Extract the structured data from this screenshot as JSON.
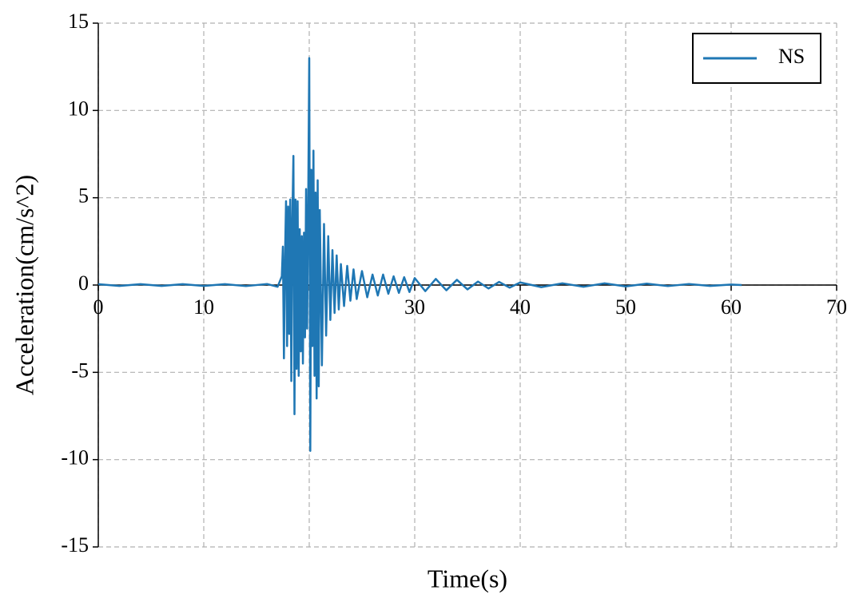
{
  "chart_data": {
    "type": "line",
    "xlabel": "Time(s)",
    "ylabel": "Acceleration(cm/s^2)",
    "x": [
      0,
      2,
      4,
      6,
      8,
      10,
      12,
      14,
      16,
      17,
      17.4,
      17.5,
      17.6,
      17.7,
      17.8,
      17.9,
      18.0,
      18.1,
      18.2,
      18.3,
      18.4,
      18.5,
      18.6,
      18.7,
      18.8,
      18.9,
      19.0,
      19.1,
      19.2,
      19.3,
      19.4,
      19.5,
      19.6,
      19.7,
      19.8,
      19.9,
      20.0,
      20.1,
      20.2,
      20.3,
      20.4,
      20.5,
      20.6,
      20.7,
      20.8,
      20.9,
      21.0,
      21.2,
      21.4,
      21.6,
      21.8,
      22.0,
      22.2,
      22.4,
      22.6,
      22.8,
      23.0,
      23.3,
      23.6,
      23.9,
      24.2,
      24.5,
      25,
      25.5,
      26,
      26.5,
      27,
      27.5,
      28,
      28.5,
      29,
      29.5,
      30,
      31,
      32,
      33,
      34,
      35,
      36,
      37,
      38,
      39,
      40,
      42,
      44,
      46,
      48,
      50,
      52,
      54,
      56,
      58,
      60,
      61
    ],
    "series": [
      {
        "name": "NS",
        "color": "#1f77b4",
        "values": [
          0.05,
          -0.05,
          0.05,
          -0.05,
          0.05,
          -0.05,
          0.05,
          -0.06,
          0.06,
          -0.1,
          0.5,
          2.2,
          -4.2,
          1.5,
          4.8,
          -3.5,
          4.5,
          -2.8,
          4.9,
          -5.5,
          3.8,
          7.4,
          -7.4,
          4.9,
          -4.8,
          4.8,
          -5.2,
          3.2,
          -3.8,
          2.8,
          -4.5,
          3.0,
          -3.0,
          5.5,
          -2.5,
          4.5,
          13.0,
          -9.5,
          6.6,
          -3.5,
          7.7,
          -5.2,
          5.3,
          -6.5,
          6.0,
          -5.8,
          4.3,
          -4.6,
          3.5,
          -2.9,
          2.8,
          -2.0,
          2.0,
          -1.6,
          1.7,
          -1.4,
          1.2,
          -1.2,
          1.1,
          -0.9,
          0.9,
          -0.8,
          0.8,
          -0.7,
          0.6,
          -0.6,
          0.6,
          -0.5,
          0.5,
          -0.45,
          0.45,
          -0.4,
          0.4,
          -0.35,
          0.35,
          -0.3,
          0.3,
          -0.25,
          0.2,
          -0.2,
          0.18,
          -0.15,
          0.15,
          -0.12,
          0.1,
          -0.1,
          0.1,
          -0.08,
          0.08,
          -0.06,
          0.06,
          -0.05,
          0.03,
          0
        ]
      }
    ],
    "xlim": [
      0,
      70
    ],
    "xticks": [
      0,
      10,
      20,
      30,
      40,
      50,
      60,
      70
    ],
    "ylim": [
      -15,
      15
    ],
    "yticks": [
      -15,
      -10,
      -5,
      0,
      5,
      10,
      15
    ],
    "grid": true,
    "legend": "upper right"
  }
}
